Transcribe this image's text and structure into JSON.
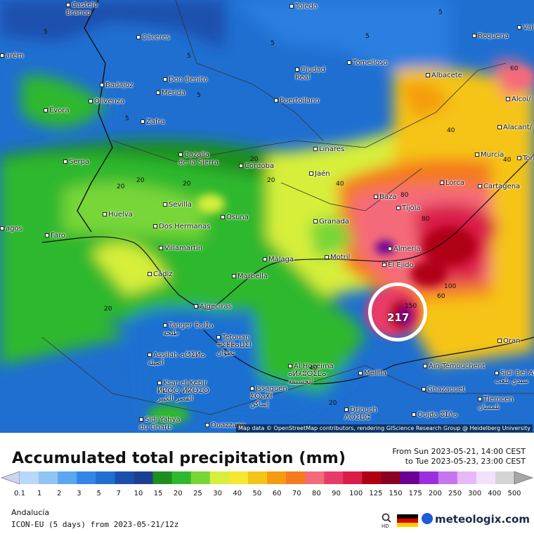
{
  "map": {
    "max_value": "217",
    "attribution": "Map data © OpenStreetMap contributors, rendering GIScience Research Group @ Heidelberg University",
    "places": [
      {
        "name": "Castelo Branco",
        "lines": [
          "Castelo",
          "Branco"
        ]
      },
      {
        "name": "Toledo"
      },
      {
        "name": "Valencia",
        "lines": [
          "Val"
        ]
      },
      {
        "name": "Cáceres"
      },
      {
        "name": "Requena"
      },
      {
        "name": "Santarém",
        "lines": [
          "arém"
        ]
      },
      {
        "name": "Ciudad Real",
        "lines": [
          "Ciudad",
          "Real"
        ]
      },
      {
        "name": "Tomelloso"
      },
      {
        "name": "Don Benito"
      },
      {
        "name": "Badajoz"
      },
      {
        "name": "Mérida"
      },
      {
        "name": "Albacete"
      },
      {
        "name": "Olivenza"
      },
      {
        "name": "Alcoy",
        "lines": [
          "Alcoi/"
        ]
      },
      {
        "name": "Puertollano"
      },
      {
        "name": "Évora"
      },
      {
        "name": "Zafra"
      },
      {
        "name": "Alacant",
        "lines": [
          "Alacant/"
        ]
      },
      {
        "name": "Linares"
      },
      {
        "name": "Cazalla de la Sierra",
        "lines": [
          "Cazalla",
          "de la Sierra"
        ]
      },
      {
        "name": "Murcia"
      },
      {
        "name": "Serpa"
      },
      {
        "name": "Córdoba"
      },
      {
        "name": "Torrevieja",
        "lines": [
          "Torr"
        ]
      },
      {
        "name": "Jaén"
      },
      {
        "name": "Lorca"
      },
      {
        "name": "Cartagena"
      },
      {
        "name": "Baza"
      },
      {
        "name": "Huelva"
      },
      {
        "name": "Sevilla"
      },
      {
        "name": "Tíjola"
      },
      {
        "name": "Lagos",
        "lines": [
          "agos"
        ]
      },
      {
        "name": "Faro"
      },
      {
        "name": "Dos Hermanas"
      },
      {
        "name": "Osuna"
      },
      {
        "name": "Granada"
      },
      {
        "name": "Villamartín"
      },
      {
        "name": "Almería"
      },
      {
        "name": "Motril"
      },
      {
        "name": "Málaga"
      },
      {
        "name": "El Ejido"
      },
      {
        "name": "Cádiz"
      },
      {
        "name": "Marbella"
      },
      {
        "name": "Algeciras"
      },
      {
        "name": "Tanger",
        "lines": [
          "Tanger ⵟⴰⵏⵊⴰ",
          "طنجة"
        ]
      },
      {
        "name": "Tetouan",
        "lines": [
          "Tetouan",
          "ⵜⵉⵟⵟⴰⵡⵉⵏ",
          "تطوان"
        ]
      },
      {
        "name": "Oran",
        "lines": [
          "Oran"
        ]
      },
      {
        "name": "Assilah",
        "lines": [
          "Assilah ⴰⵚⵉⵍⴰ",
          "أصيلة"
        ]
      },
      {
        "name": "Al Hoceima",
        "lines": [
          "Al Hoceima",
          "ⴰⵍⵃⵓⵙⵉⵎⴰ",
          "الحسيمة"
        ]
      },
      {
        "name": "Aïn Témouchent",
        "lines": [
          "Aïn Témouchent"
        ]
      },
      {
        "name": "Sidi Bel Abbès",
        "lines": [
          "Sidi Bel Ab",
          "سيدي بلعب"
        ]
      },
      {
        "name": "Ksar-el-Kebir",
        "lines": [
          "Ksar-el-Kebir",
          "ⵍⵇⵚⵔ ⵍⴽⴱⵉⵔ",
          "القصر الكبير"
        ]
      },
      {
        "name": "Melilla"
      },
      {
        "name": "Ghazaouet"
      },
      {
        "name": "Issaguen",
        "lines": [
          "Issaguen",
          "ⵉⵙⴰⴳⵏ",
          "إساكن"
        ]
      },
      {
        "name": "Tlemcen",
        "lines": [
          "Tlemcen",
          "تلمسان"
        ]
      },
      {
        "name": "Driouch",
        "lines": [
          "Driouch",
          "ⴷⵔⵉⵡⵛ"
        ]
      },
      {
        "name": "Sidi Yahya du Gharb",
        "lines": [
          "Sidi Yahya",
          "du Gharb"
        ]
      },
      {
        "name": "Ouazzane",
        "lines": [
          "Ouazzane"
        ]
      },
      {
        "name": "Oujda",
        "lines": [
          "Oujda ⵓⵊⴷⴰ"
        ]
      }
    ],
    "contour_labels": [
      "5",
      "5",
      "5",
      "5",
      "5",
      "5",
      "5",
      "20",
      "20",
      "20",
      "20",
      "20",
      "20",
      "20",
      "40",
      "40",
      "40",
      "40",
      "60",
      "60",
      "80",
      "80",
      "100",
      "150"
    ]
  },
  "header": {
    "title": "Accumulated total precipitation (mm)",
    "period_from": "From Sun 2023-05-21, 14:00 CEST",
    "period_to": "to Tue 2023-05-23, 23:00 CEST"
  },
  "legend": {
    "ticks": [
      "0.1",
      "1",
      "2",
      "3",
      "5",
      "7",
      "10",
      "15",
      "20",
      "25",
      "30",
      "40",
      "50",
      "60",
      "70",
      "80",
      "90",
      "100",
      "125",
      "150",
      "175",
      "200",
      "250",
      "300",
      "400",
      "500"
    ],
    "colors": [
      "#cfd3f0",
      "#b7d9f7",
      "#8fc3f3",
      "#5aa6ef",
      "#3386e8",
      "#1f6fd1",
      "#1b4fae",
      "#1d3f90",
      "#1e8e1e",
      "#2fb82f",
      "#77d637",
      "#d7ef3b",
      "#f4e832",
      "#f5c418",
      "#f59b10",
      "#f47a1c",
      "#f56a7a",
      "#e93b68",
      "#d91c48",
      "#b00016",
      "#8b0020",
      "#6a0096",
      "#9b2fe0",
      "#c674ef",
      "#e6b9f6",
      "#f3e0fa",
      "#d4d4d4",
      "#a7a7a7"
    ]
  },
  "footer": {
    "region": "Andalucía",
    "model_run": "ICON-EU (5 days) from 2023-05-21/12z",
    "hd_label": "HD",
    "brand": "meteologix.com"
  }
}
